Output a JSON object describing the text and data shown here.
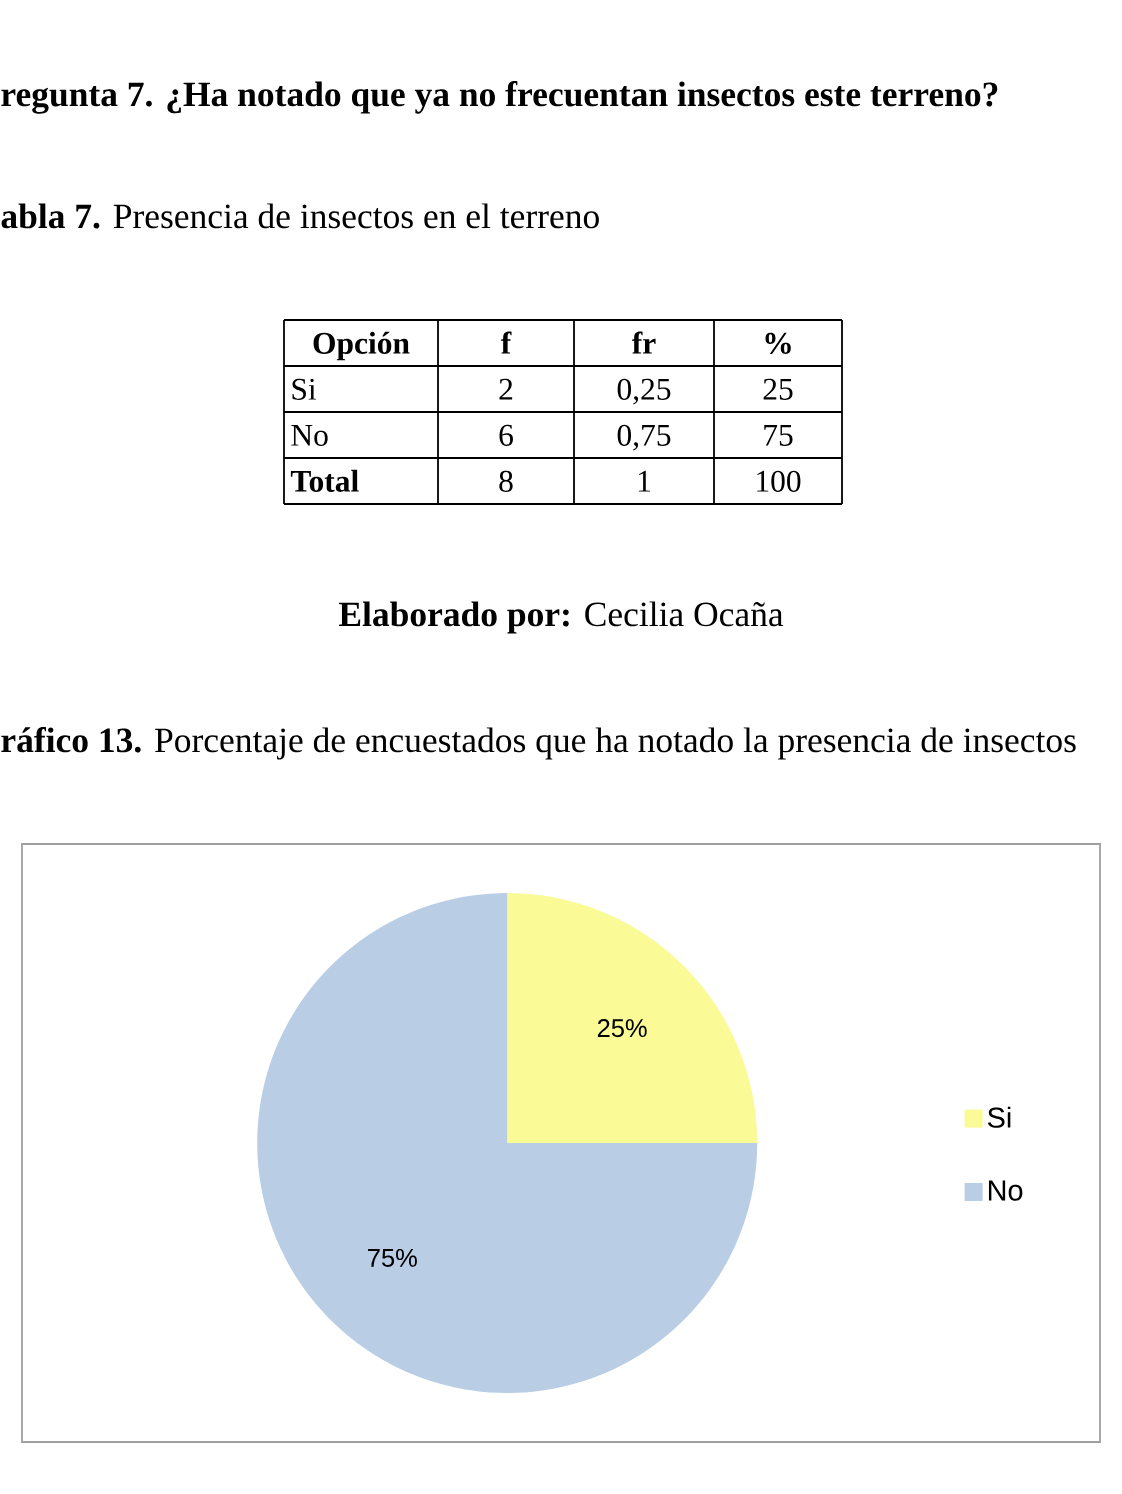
{
  "chart_data": {
    "type": "pie",
    "title": "**ráfico 13.** Porcentaje de encuestados que ha notado la presencia de insectos",
    "categories": [
      "Si",
      "No"
    ],
    "values": [
      25,
      75
    ],
    "colors": [
      "#fafa96",
      "#b9cde5"
    ],
    "value_labels": [
      "25%",
      "75%"
    ],
    "legend": "right",
    "annotations": [
      "regunta 7. ¿Ha notado que ya no frecuentan insectos este terreno?",
      "**abla 7.** Presencia de insectos en el terreno",
      "Opción",
      "f",
      "fr",
      "%",
      "Si",
      "2",
      "0,25",
      "25",
      "No",
      "6",
      "0,75",
      "75",
      "Total",
      "8",
      "1",
      "100",
      "**Elaborado por:** Cecilia Ocaña"
    ]
  }
}
